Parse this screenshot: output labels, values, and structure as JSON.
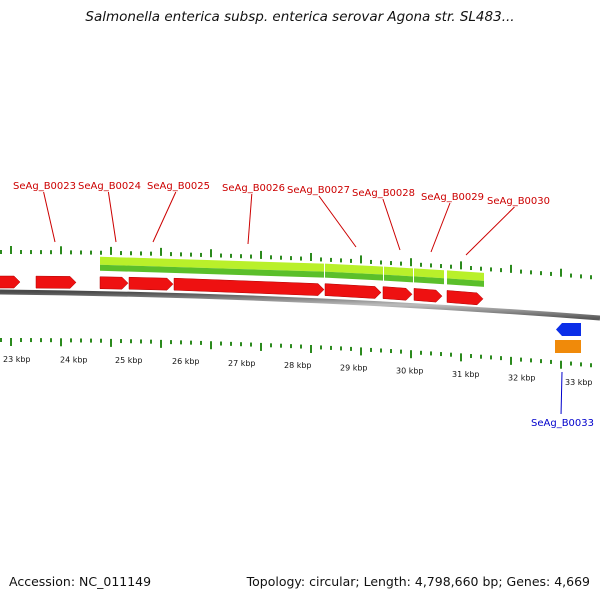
{
  "title": "Salmonella enterica subsp. enterica serovar Agona str. SL483...",
  "accession_label": "Accession:",
  "accession": "NC_011149",
  "summary": "Topology: circular; Length: 4,798,660 bp; Genes: 4,669",
  "colors": {
    "gene_label": "#cc0000",
    "gene_label_alt": "#0000cc",
    "cds_forward": "#ee1111",
    "gene_feature": "#5bbf2a",
    "gene_feature_light": "#b9f02a",
    "cds_reverse_blue": "#0b2ee8",
    "cds_reverse_orange": "#f08a0a",
    "tick": "#2b8a1d",
    "backbone": "#8c8c8c"
  },
  "kbp_ticks": [
    "23 kbp",
    "24 kbp",
    "25 kbp",
    "26 kbp",
    "27 kbp",
    "28 kbp",
    "29 kbp",
    "30 kbp",
    "31 kbp",
    "32 kbp",
    "33 kbp"
  ],
  "gene_labels": [
    "SeAg_B0023",
    "SeAg_B0024",
    "SeAg_B0025",
    "SeAg_B0026",
    "SeAg_B0027",
    "SeAg_B0028",
    "SeAg_B0029",
    "SeAg_B0030",
    "SeAg_B0033"
  ]
}
